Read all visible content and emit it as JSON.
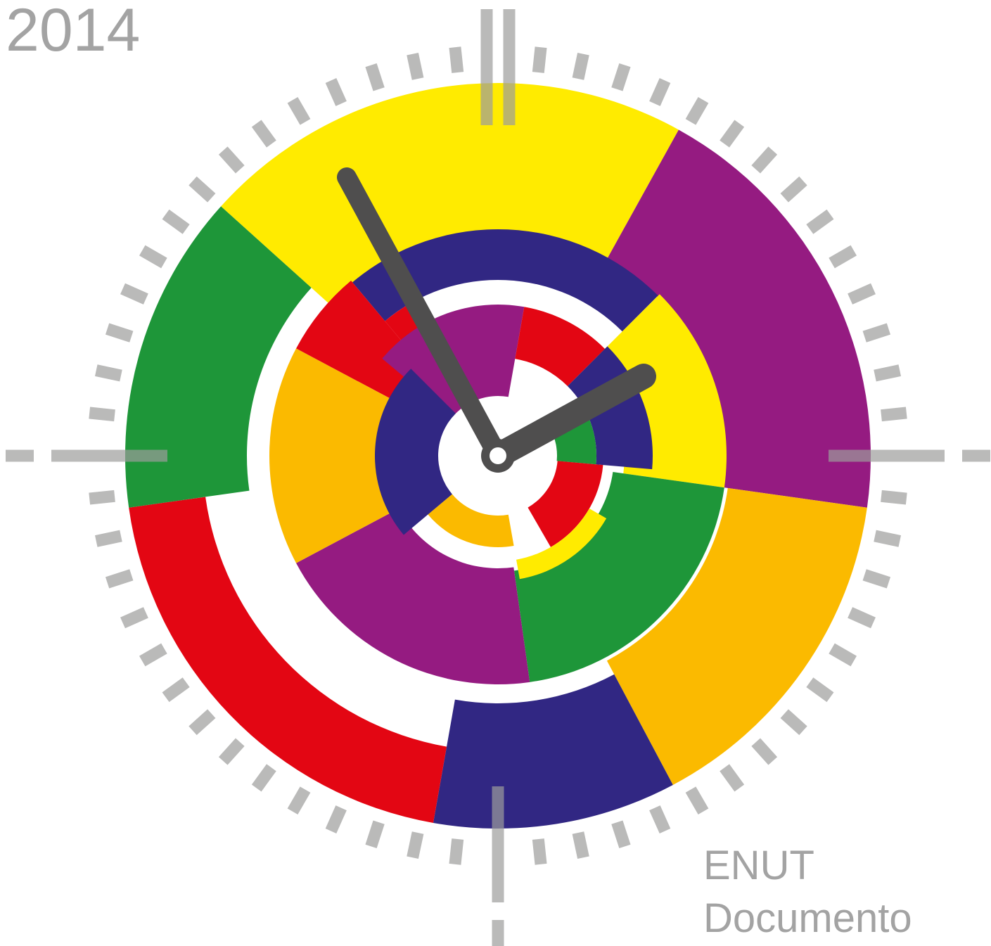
{
  "header": {
    "year": "2014"
  },
  "footer": {
    "line1": "ENUT",
    "line2": "Documento"
  }
}
